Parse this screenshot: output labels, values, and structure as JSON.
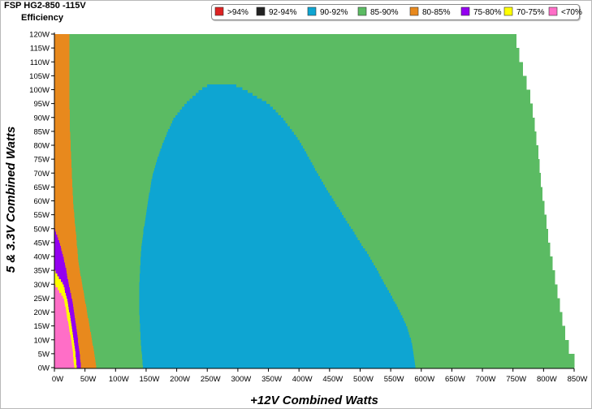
{
  "header": {
    "title": "FSP HG2-850 -115V",
    "subtitle": "Efficiency"
  },
  "chart_data": {
    "type": "heatmap",
    "xlabel": "+12V Combined Watts",
    "ylabel": "5 & 3.3V Combined Watts",
    "xlim": [
      0,
      850
    ],
    "ylim": [
      0,
      120
    ],
    "x_ticks": [
      "0W",
      "50W",
      "100W",
      "150W",
      "200W",
      "250W",
      "300W",
      "350W",
      "400W",
      "450W",
      "500W",
      "550W",
      "600W",
      "650W",
      "700W",
      "750W",
      "800W",
      "850W"
    ],
    "y_ticks": [
      "0W",
      "5W",
      "10W",
      "15W",
      "20W",
      "25W",
      "30W",
      "35W",
      "40W",
      "45W",
      "50W",
      "55W",
      "60W",
      "65W",
      "70W",
      "75W",
      "80W",
      "85W",
      "90W",
      "95W",
      "100W",
      "105W",
      "110W",
      "115W",
      "120W"
    ],
    "legend_position": "top-right",
    "legend": [
      {
        "label": ">94%",
        "color": "#dd2222"
      },
      {
        "label": "92-94%",
        "color": "#222222"
      },
      {
        "label": "90-92%",
        "color": "#0ea5d2"
      },
      {
        "label": "85-90%",
        "color": "#5bbb63"
      },
      {
        "label": "80-85%",
        "color": "#e8891d"
      },
      {
        "label": "75-80%",
        "color": "#9400f0"
      },
      {
        "label": "70-75%",
        "color": "#ffff00"
      },
      {
        "label": "<70%",
        "color": "#ff6ec7"
      }
    ],
    "max_load_boundary": [
      {
        "y": 0,
        "x": 850
      },
      {
        "y": 5,
        "x": 841
      },
      {
        "y": 10,
        "x": 835
      },
      {
        "y": 15,
        "x": 830
      },
      {
        "y": 20,
        "x": 826
      },
      {
        "y": 25,
        "x": 822
      },
      {
        "y": 30,
        "x": 818
      },
      {
        "y": 35,
        "x": 814
      },
      {
        "y": 40,
        "x": 810
      },
      {
        "y": 45,
        "x": 807
      },
      {
        "y": 50,
        "x": 804
      },
      {
        "y": 55,
        "x": 801
      },
      {
        "y": 60,
        "x": 798
      },
      {
        "y": 65,
        "x": 795
      },
      {
        "y": 70,
        "x": 793
      },
      {
        "y": 75,
        "x": 791
      },
      {
        "y": 80,
        "x": 788
      },
      {
        "y": 85,
        "x": 785
      },
      {
        "y": 90,
        "x": 782
      },
      {
        "y": 95,
        "x": 778
      },
      {
        "y": 100,
        "x": 772
      },
      {
        "y": 105,
        "x": 766
      },
      {
        "y": 110,
        "x": 760
      },
      {
        "y": 115,
        "x": 755
      },
      {
        "y": 120,
        "x": 755
      }
    ],
    "band_boundaries": [
      {
        "y": 0,
        "lt70": 32,
        "r70_75": 36,
        "r75_80": 43,
        "r80_85": 68,
        "r90_92": [
          145,
          590
        ]
      },
      {
        "y": 5,
        "lt70": 30,
        "r70_75": 34,
        "r75_80": 41,
        "r80_85": 65,
        "r90_92": [
          143,
          587
        ]
      },
      {
        "y": 10,
        "lt70": 27,
        "r70_75": 31,
        "r75_80": 38,
        "r80_85": 61,
        "r90_92": [
          141,
          583
        ]
      },
      {
        "y": 15,
        "lt70": 23,
        "r70_75": 28,
        "r75_80": 35,
        "r80_85": 57,
        "r90_92": [
          140,
          576
        ]
      },
      {
        "y": 20,
        "lt70": 19,
        "r70_75": 24,
        "r75_80": 32,
        "r80_85": 53,
        "r90_92": [
          139,
          565
        ]
      },
      {
        "y": 25,
        "lt70": 15,
        "r70_75": 20,
        "r75_80": 28,
        "r80_85": 49,
        "r90_92": [
          139,
          553
        ]
      },
      {
        "y": 30,
        "lt70": 0,
        "r70_75": 14,
        "r75_80": 23,
        "r80_85": 45,
        "r90_92": [
          139,
          540
        ]
      },
      {
        "y": 35,
        "lt70": 0,
        "r70_75": 0,
        "r75_80": 19,
        "r80_85": 41,
        "r90_92": [
          140,
          528
        ]
      },
      {
        "y": 40,
        "lt70": 0,
        "r70_75": 0,
        "r75_80": 14,
        "r80_85": 38,
        "r90_92": [
          141,
          515
        ]
      },
      {
        "y": 45,
        "lt70": 0,
        "r70_75": 0,
        "r75_80": 8,
        "r80_85": 36,
        "r90_92": [
          143,
          500
        ]
      },
      {
        "y": 50,
        "lt70": 0,
        "r70_75": 0,
        "r75_80": 0,
        "r80_85": 34,
        "r90_92": [
          146,
          486
        ]
      },
      {
        "y": 55,
        "lt70": 0,
        "r70_75": 0,
        "r75_80": 0,
        "r80_85": 32,
        "r90_92": [
          150,
          471
        ]
      },
      {
        "y": 60,
        "lt70": 0,
        "r70_75": 0,
        "r75_80": 0,
        "r80_85": 30,
        "r90_92": [
          153,
          457
        ]
      },
      {
        "y": 65,
        "lt70": 0,
        "r70_75": 0,
        "r75_80": 0,
        "r80_85": 29,
        "r90_92": [
          157,
          443
        ]
      },
      {
        "y": 70,
        "lt70": 0,
        "r70_75": 0,
        "r75_80": 0,
        "r80_85": 28,
        "r90_92": [
          161,
          430
        ]
      },
      {
        "y": 75,
        "lt70": 0,
        "r70_75": 0,
        "r75_80": 0,
        "r80_85": 27,
        "r90_92": [
          168,
          417
        ]
      },
      {
        "y": 80,
        "lt70": 0,
        "r70_75": 0,
        "r75_80": 0,
        "r80_85": 26,
        "r90_92": [
          176,
          405
        ]
      },
      {
        "y": 85,
        "lt70": 0,
        "r70_75": 0,
        "r75_80": 0,
        "r80_85": 25,
        "r90_92": [
          185,
          390
        ]
      },
      {
        "y": 90,
        "lt70": 0,
        "r70_75": 0,
        "r75_80": 0,
        "r80_85": 25,
        "r90_92": [
          196,
          372
        ]
      },
      {
        "y": 95,
        "lt70": 0,
        "r70_75": 0,
        "r75_80": 0,
        "r80_85": 24,
        "r90_92": [
          214,
          350
        ]
      },
      {
        "y": 100,
        "lt70": 0,
        "r70_75": 0,
        "r75_80": 0,
        "r80_85": 24,
        "r90_92": [
          238,
          312
        ]
      },
      {
        "y": 105,
        "lt70": 0,
        "r70_75": 0,
        "r75_80": 0,
        "r80_85": 24,
        "r90_92": null
      },
      {
        "y": 110,
        "lt70": 0,
        "r70_75": 0,
        "r75_80": 0,
        "r80_85": 24,
        "r90_92": null
      },
      {
        "y": 115,
        "lt70": 0,
        "r70_75": 0,
        "r75_80": 0,
        "r80_85": 24,
        "r90_92": null
      },
      {
        "y": 120,
        "lt70": 0,
        "r70_75": 0,
        "r75_80": 0,
        "r80_85": 24,
        "r90_92": null
      }
    ]
  }
}
